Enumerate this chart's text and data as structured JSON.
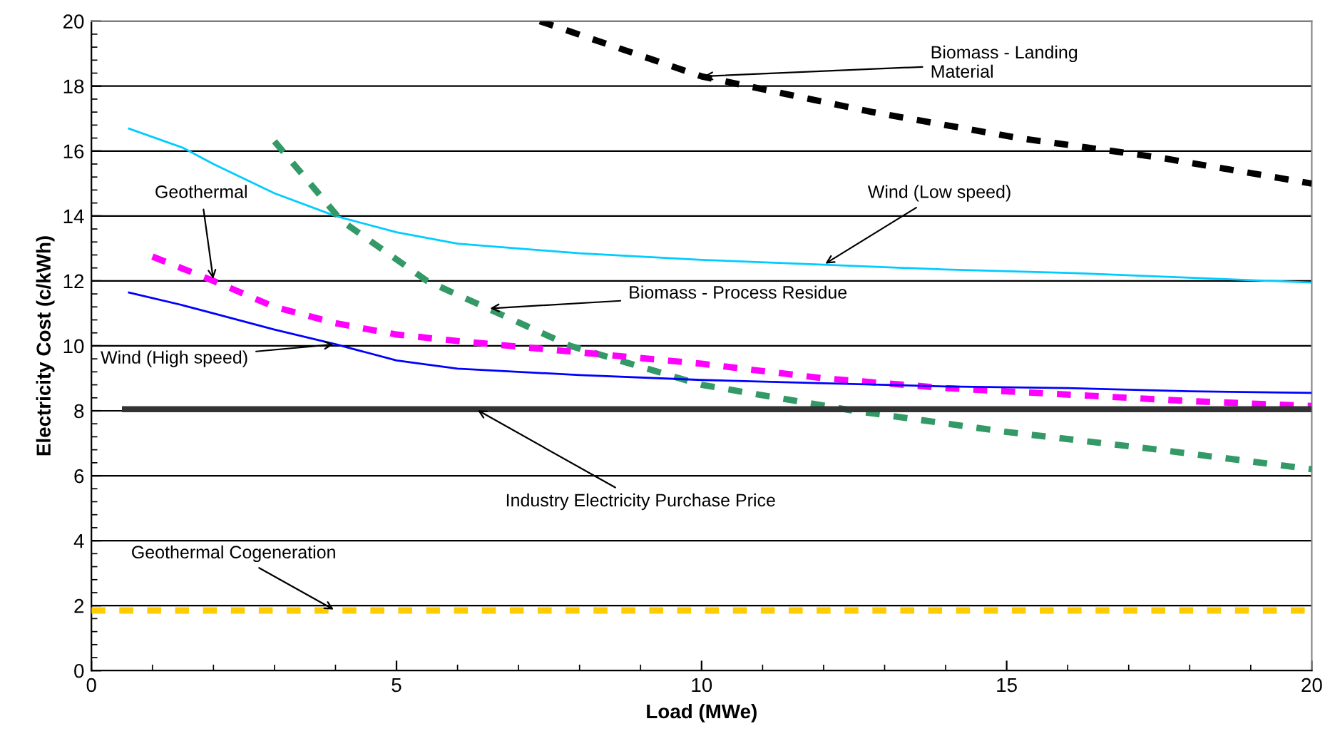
{
  "chart_data": {
    "type": "line",
    "xlabel": "Load (MWe)",
    "ylabel": "Electricity Cost (c/kWh)",
    "xlim": [
      0,
      20
    ],
    "xticks": [
      0,
      5,
      10,
      15,
      20
    ],
    "ylim": [
      0,
      20
    ],
    "yticks": [
      0,
      2,
      4,
      6,
      8,
      10,
      12,
      14,
      16,
      18,
      20
    ],
    "grid": "y",
    "marker": "none",
    "series": [
      {
        "color": "#000000",
        "line_style": "dashed",
        "x": [
          7.35,
          10.0,
          12.8,
          15.2,
          17.5,
          20.0
        ],
        "values": [
          20.0,
          18.3,
          17.2,
          16.4,
          15.8,
          15.0
        ]
      },
      {
        "color": "#00ccff",
        "line_style": "solid",
        "x": [
          0.6,
          1.5,
          2,
          3,
          4,
          5,
          6,
          8,
          10,
          12,
          14,
          16,
          18,
          20
        ],
        "values": [
          16.7,
          16.1,
          15.6,
          14.7,
          14.0,
          13.5,
          13.15,
          12.85,
          12.65,
          12.5,
          12.35,
          12.25,
          12.1,
          11.95
        ]
      },
      {
        "color": "#339966",
        "line_style": "dashed",
        "x": [
          3.0,
          4.1,
          5.5,
          7.85,
          10.0,
          12.5,
          15.0,
          17.5,
          20.0
        ],
        "values": [
          16.3,
          13.85,
          12.0,
          10.0,
          8.8,
          8.0,
          7.35,
          6.8,
          6.2
        ]
      },
      {
        "color": "#ff00ff",
        "line_style": "dashed",
        "x": [
          1.0,
          2,
          3,
          4,
          5,
          6,
          8,
          10,
          12,
          14,
          16,
          18,
          20
        ],
        "values": [
          12.75,
          12.0,
          11.2,
          10.7,
          10.35,
          10.15,
          9.8,
          9.45,
          9.0,
          8.7,
          8.5,
          8.3,
          8.15
        ]
      },
      {
        "color": "#0000ff",
        "line_style": "solid",
        "x": [
          0.6,
          1.5,
          2,
          3,
          4,
          5,
          6,
          8,
          10,
          12,
          14,
          16,
          18,
          20
        ],
        "values": [
          11.65,
          11.25,
          11.0,
          10.5,
          10.05,
          9.55,
          9.3,
          9.1,
          8.95,
          8.85,
          8.75,
          8.7,
          8.6,
          8.55
        ]
      },
      {
        "color": "#333333",
        "line_style": "solid",
        "x": [
          0.5,
          20.0
        ],
        "values": [
          8.05,
          8.05
        ]
      },
      {
        "color": "#ffcc00",
        "line_style": "dashed",
        "x": [
          0.0,
          20.0
        ],
        "values": [
          1.85,
          1.85
        ]
      }
    ],
    "annotations": [
      {
        "text": "Biomass - Landing\nMaterial",
        "x": 10.0,
        "y": 18.3
      },
      {
        "text": "Wind (Low speed)",
        "x": 12,
        "y": 12.5
      },
      {
        "text": "Geothermal",
        "x": 2,
        "y": 12.0
      },
      {
        "text": "Biomass - Process Residue",
        "x": 6.5,
        "y": 11.15
      },
      {
        "text": "Wind (High speed)",
        "x": 4,
        "y": 10.05
      },
      {
        "text": "Industry Electricity Purchase Price",
        "x": 6.3,
        "y": 8.05
      },
      {
        "text": "Geothermal Cogeneration",
        "x": 4.0,
        "y": 1.85
      }
    ]
  }
}
